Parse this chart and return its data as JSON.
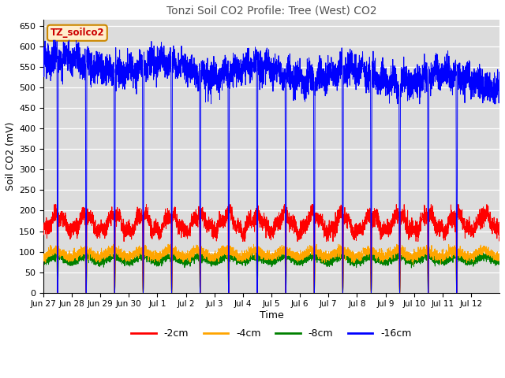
{
  "title": "Tonzi Soil CO2 Profile: Tree (West) CO2",
  "xlabel": "Time",
  "ylabel": "Soil CO2 (mV)",
  "ylim": [
    0,
    665
  ],
  "yticks": [
    0,
    50,
    100,
    150,
    200,
    250,
    300,
    350,
    400,
    450,
    500,
    550,
    600,
    650
  ],
  "legend_labels": [
    "-2cm",
    "-4cm",
    "-8cm",
    "-16cm"
  ],
  "legend_colors": [
    "red",
    "orange",
    "green",
    "blue"
  ],
  "inset_label": "TZ_soilco2",
  "inset_facecolor": "#FFEECC",
  "inset_edgecolor": "#CC8800",
  "background_color": "#DCDCDC",
  "n_days": 16,
  "xtick_labels": [
    "Jun 27",
    "Jun 28",
    "Jun 29",
    "Jun 30",
    "Jul 1",
    "Jul 2",
    "Jul 3",
    "Jul 4",
    "Jul 5",
    "Jul 6",
    "Jul 7",
    "Jul 8",
    "Jul 9",
    "Jul 10",
    "Jul 11",
    "Jul 12"
  ],
  "line_lw": 0.7,
  "figwidth": 6.4,
  "figheight": 4.8,
  "dpi": 100
}
